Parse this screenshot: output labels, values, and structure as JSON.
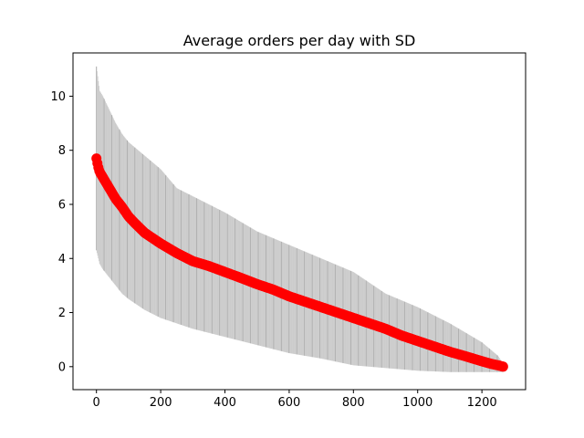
{
  "chart_data": {
    "type": "scatter",
    "title": "Average orders per day with SD",
    "xlabel": "",
    "ylabel": "",
    "xlim": [
      -73,
      1336
    ],
    "ylim": [
      -0.85,
      11.6
    ],
    "x_ticks": [
      0,
      200,
      400,
      600,
      800,
      1000,
      1200
    ],
    "y_ticks": [
      0,
      2,
      4,
      6,
      8,
      10
    ],
    "grid": false,
    "legend": "none",
    "n_points": 1267,
    "mean_curve": {
      "x": [
        0,
        5,
        10,
        20,
        30,
        40,
        50,
        60,
        70,
        80,
        100,
        120,
        150,
        200,
        250,
        300,
        350,
        400,
        450,
        500,
        550,
        600,
        650,
        700,
        750,
        800,
        850,
        900,
        950,
        1000,
        1050,
        1100,
        1150,
        1200,
        1230,
        1250,
        1260,
        1266
      ],
      "y": [
        7.7,
        7.4,
        7.2,
        7.0,
        6.8,
        6.6,
        6.4,
        6.2,
        6.05,
        5.9,
        5.55,
        5.3,
        4.95,
        4.55,
        4.2,
        3.9,
        3.72,
        3.5,
        3.28,
        3.05,
        2.85,
        2.6,
        2.4,
        2.2,
        2.0,
        1.8,
        1.6,
        1.4,
        1.15,
        0.95,
        0.75,
        0.55,
        0.38,
        0.2,
        0.1,
        0.05,
        0.02,
        0.0
      ]
    },
    "error_upper": {
      "x": [
        0,
        10,
        20,
        40,
        60,
        80,
        100,
        150,
        200,
        250,
        300,
        400,
        500,
        600,
        700,
        800,
        900,
        1000,
        1100,
        1200,
        1250,
        1266
      ],
      "y": [
        11.1,
        10.2,
        10.0,
        9.5,
        9.0,
        8.6,
        8.3,
        7.8,
        7.3,
        6.6,
        6.3,
        5.7,
        5.0,
        4.5,
        4.0,
        3.5,
        2.7,
        2.2,
        1.6,
        0.9,
        0.4,
        0.1
      ]
    },
    "error_lower": {
      "x": [
        0,
        10,
        20,
        40,
        60,
        80,
        100,
        150,
        200,
        250,
        300,
        400,
        500,
        600,
        700,
        800,
        900,
        1000,
        1100,
        1200,
        1250,
        1266
      ],
      "y": [
        4.3,
        3.8,
        3.6,
        3.3,
        3.0,
        2.7,
        2.5,
        2.1,
        1.8,
        1.6,
        1.4,
        1.1,
        0.8,
        0.5,
        0.3,
        0.05,
        -0.05,
        -0.15,
        -0.2,
        -0.2,
        -0.2,
        -0.2
      ]
    },
    "colors": {
      "points": "#ff0000",
      "error_bars": "#a9a9a9",
      "error_fill": "#cccccc",
      "axes": "#000000",
      "background": "#ffffff"
    }
  }
}
